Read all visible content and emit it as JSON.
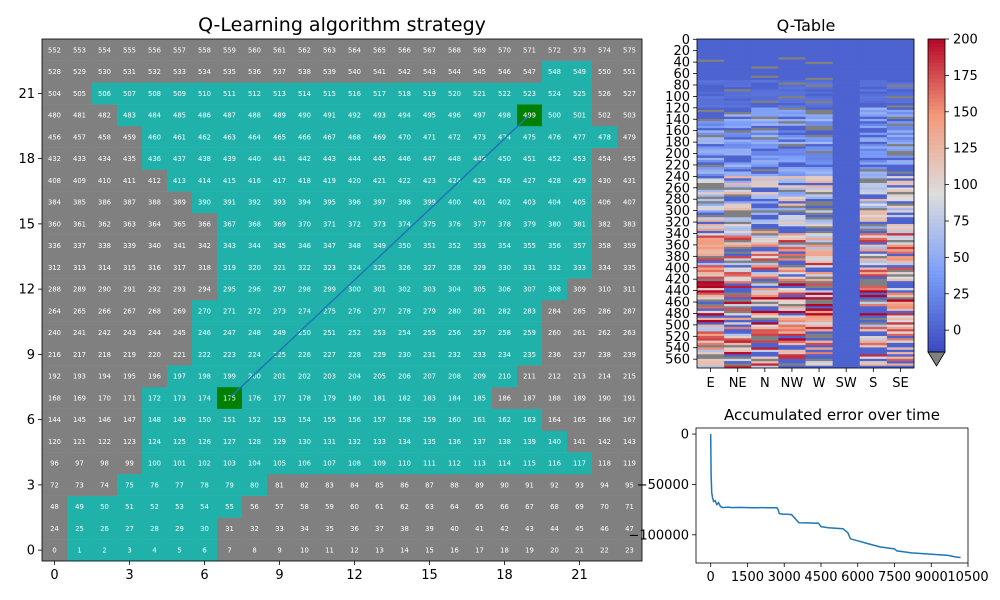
{
  "chart_data": [
    {
      "type": "heatmap",
      "title": "Q-Learning algorithm strategy",
      "grid_cols": 24,
      "grid_rows": 24,
      "cell_label_start": 0,
      "x_ticks": [
        "0",
        "3",
        "6",
        "9",
        "12",
        "15",
        "18",
        "21"
      ],
      "y_ticks": [
        "0",
        "3",
        "6",
        "9",
        "12",
        "15",
        "18",
        "21"
      ],
      "start_cell": 175,
      "goal_cell": 499,
      "path_from": [
        7.0,
        7.0
      ],
      "path_to": [
        19.0,
        20.0
      ],
      "colors": {
        "background": "#808080",
        "visited": "#20b2aa",
        "start_goal": "#008000",
        "path": "#1f77b4",
        "label": "#ffffff"
      },
      "visited_cells": [
        548,
        549,
        506,
        507,
        508,
        509,
        510,
        511,
        512,
        513,
        514,
        515,
        516,
        517,
        518,
        519,
        520,
        521,
        522,
        523,
        524,
        525,
        483,
        484,
        485,
        486,
        487,
        488,
        489,
        490,
        491,
        492,
        493,
        494,
        495,
        496,
        497,
        498,
        499,
        500,
        501,
        460,
        461,
        462,
        463,
        464,
        465,
        466,
        467,
        468,
        469,
        470,
        471,
        472,
        473,
        474,
        475,
        476,
        477,
        478,
        436,
        437,
        438,
        439,
        440,
        441,
        442,
        443,
        444,
        445,
        446,
        447,
        448,
        449,
        450,
        451,
        452,
        453,
        413,
        414,
        415,
        416,
        417,
        418,
        419,
        420,
        421,
        422,
        423,
        424,
        425,
        426,
        427,
        428,
        429,
        390,
        391,
        392,
        393,
        394,
        395,
        396,
        397,
        398,
        399,
        400,
        401,
        402,
        403,
        404,
        405,
        367,
        368,
        369,
        370,
        371,
        372,
        373,
        374,
        375,
        376,
        377,
        378,
        379,
        380,
        381,
        343,
        344,
        345,
        346,
        347,
        348,
        349,
        350,
        351,
        352,
        353,
        354,
        355,
        356,
        357,
        319,
        320,
        321,
        322,
        323,
        324,
        325,
        326,
        327,
        328,
        329,
        330,
        331,
        332,
        333,
        295,
        296,
        297,
        298,
        299,
        300,
        301,
        302,
        303,
        304,
        305,
        306,
        307,
        308,
        270,
        271,
        272,
        273,
        274,
        275,
        276,
        277,
        278,
        279,
        280,
        281,
        282,
        283,
        246,
        247,
        248,
        249,
        250,
        251,
        252,
        253,
        254,
        255,
        256,
        257,
        258,
        259,
        222,
        223,
        224,
        225,
        226,
        227,
        228,
        229,
        230,
        231,
        232,
        233,
        234,
        235,
        197,
        198,
        199,
        200,
        201,
        202,
        203,
        204,
        205,
        206,
        207,
        208,
        209,
        210,
        172,
        173,
        174,
        175,
        176,
        177,
        178,
        179,
        180,
        181,
        182,
        183,
        184,
        185,
        148,
        149,
        150,
        151,
        152,
        153,
        154,
        155,
        156,
        157,
        158,
        159,
        160,
        161,
        162,
        163,
        124,
        125,
        126,
        127,
        128,
        129,
        130,
        131,
        132,
        133,
        134,
        135,
        136,
        137,
        138,
        139,
        140,
        100,
        101,
        102,
        103,
        104,
        105,
        106,
        107,
        108,
        109,
        110,
        111,
        112,
        113,
        114,
        115,
        116,
        117,
        75,
        76,
        77,
        78,
        79,
        80,
        49,
        50,
        51,
        52,
        53,
        54,
        55,
        25,
        26,
        27,
        28,
        29,
        30,
        1,
        2,
        3,
        4,
        5,
        6
      ]
    },
    {
      "type": "heatmap",
      "title": "Q-Table",
      "columns": [
        "E",
        "NE",
        "N",
        "NW",
        "W",
        "SW",
        "S",
        "SE"
      ],
      "rows": 576,
      "y_ticks": [
        0,
        20,
        40,
        60,
        80,
        100,
        120,
        140,
        160,
        180,
        200,
        220,
        240,
        260,
        280,
        300,
        320,
        340,
        360,
        380,
        400,
        420,
        440,
        460,
        480,
        500,
        520,
        540,
        560
      ],
      "colorbar": {
        "min": -15,
        "max": 200,
        "ticks": [
          0,
          25,
          50,
          75,
          100,
          125,
          150,
          175,
          200
        ],
        "extend_min_color": "#808080"
      },
      "row_profiles": [
        {
          "from": 0,
          "to": 70,
          "value": 0
        },
        {
          "from": 70,
          "to": 120,
          "value": 10
        },
        {
          "from": 120,
          "to": 240,
          "value": 45
        },
        {
          "from": 240,
          "to": 330,
          "value": 95
        },
        {
          "from": 330,
          "to": 420,
          "value": 140
        },
        {
          "from": 420,
          "to": 500,
          "value": 170
        },
        {
          "from": 500,
          "to": 576,
          "value": 150
        }
      ],
      "sw_column_value": 0
    },
    {
      "type": "line",
      "title": "Accumulated error over time",
      "xlabel": "",
      "ylabel": "",
      "xlim": [
        -600,
        10500
      ],
      "ylim": [
        -128000,
        6000
      ],
      "x_ticks": [
        0,
        1500,
        3000,
        4500,
        6000,
        7500,
        9000,
        10500
      ],
      "y_ticks": [
        0,
        -50000,
        -100000
      ],
      "color": "#1f77b4",
      "x": [
        0,
        15,
        40,
        80,
        120,
        180,
        250,
        320,
        400,
        500,
        700,
        900,
        1200,
        1500,
        1800,
        2100,
        2400,
        2700,
        2750,
        2800,
        2950,
        3100,
        3300,
        3600,
        3900,
        4200,
        4400,
        4500,
        4800,
        5100,
        5400,
        5600,
        5700,
        6000,
        6300,
        6600,
        6900,
        7200,
        7500,
        7600,
        7900,
        8200,
        8500,
        8800,
        9100,
        9400,
        9700,
        10000,
        10200
      ],
      "y": [
        0,
        -40000,
        -58000,
        -64000,
        -67000,
        -66000,
        -70000,
        -68000,
        -72000,
        -73000,
        -72500,
        -73000,
        -72800,
        -73000,
        -73200,
        -73000,
        -73100,
        -73200,
        -75000,
        -79000,
        -79500,
        -79600,
        -80000,
        -88000,
        -88200,
        -88400,
        -88500,
        -92000,
        -93000,
        -93500,
        -94000,
        -98000,
        -104000,
        -106000,
        -108000,
        -110000,
        -112000,
        -113000,
        -114000,
        -116000,
        -117000,
        -118000,
        -118500,
        -119000,
        -119500,
        -120000,
        -120500,
        -122000,
        -122500
      ]
    }
  ]
}
